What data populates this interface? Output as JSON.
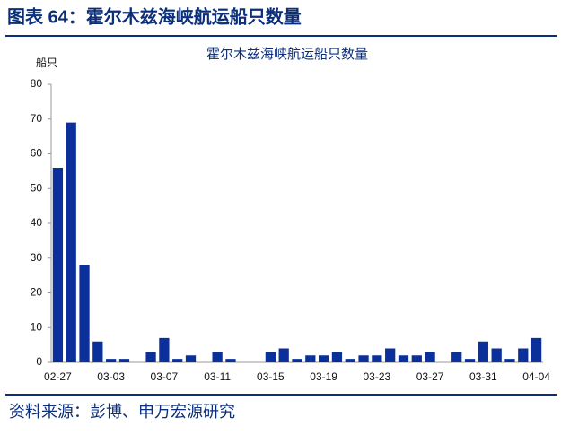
{
  "header": {
    "title": "图表 64：霍尔木兹海峡航运船只数量"
  },
  "chart_data": {
    "type": "bar",
    "title": "霍尔木兹海峡航运船只数量",
    "y_label": "船只",
    "categories": [
      "02-27",
      null,
      null,
      null,
      "03-03",
      null,
      null,
      null,
      "03-07",
      null,
      null,
      null,
      "03-11",
      null,
      null,
      null,
      "03-15",
      null,
      null,
      null,
      "03-19",
      null,
      null,
      null,
      "03-23",
      null,
      null,
      null,
      "03-27",
      null,
      null,
      null,
      "03-31",
      null,
      null,
      null,
      "04-04"
    ],
    "values": [
      56,
      69,
      28,
      6,
      1,
      1,
      0,
      3,
      7,
      1,
      2,
      0,
      3,
      1,
      0,
      0,
      3,
      4,
      1,
      2,
      2,
      3,
      1,
      2,
      2,
      4,
      2,
      2,
      3,
      0,
      3,
      1,
      6,
      4,
      1,
      4,
      7
    ],
    "color": "#0b2f9b",
    "ylim": [
      0,
      80
    ],
    "yticks": [
      0,
      10,
      20,
      30,
      40,
      50,
      60,
      70,
      80
    ],
    "grid": false
  },
  "source": "资料来源：彭博、申万宏源研究"
}
